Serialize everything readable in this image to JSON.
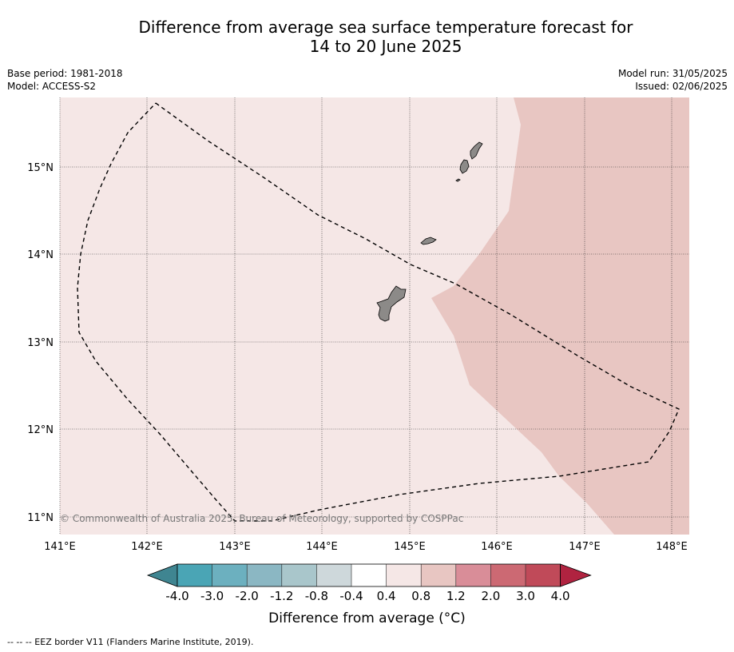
{
  "title_line1": "Difference from average sea surface temperature forecast for",
  "title_line2": "14 to 20 June 2025",
  "base_period": "Base period: 1981-2018",
  "model": "Model: ACCESS-S2",
  "model_run": "Model run: 31/05/2025",
  "issued": "Issued: 02/06/2025",
  "lat_labels": [
    "15°N",
    "14°N",
    "13°N",
    "12°N",
    "11°N"
  ],
  "lon_labels": [
    "141°E",
    "142°E",
    "143°E",
    "144°E",
    "145°E",
    "146°E",
    "147°E",
    "148°E"
  ],
  "copyright": "© Commonwealth of Australia 2025, Bureau of Meteorology, supported by COSPPac",
  "colorbar": {
    "ticks": [
      "-4.0",
      "-3.0",
      "-2.0",
      "-1.2",
      "-0.8",
      "-0.4",
      "0.4",
      "0.8",
      "1.2",
      "2.0",
      "3.0",
      "4.0"
    ],
    "colors": [
      "#3f8591",
      "#4aa5b5",
      "#6cb0bf",
      "#8bb7c3",
      "#a9c6cb",
      "#ced8db",
      "#ffffff",
      "#f5e7e6",
      "#e8c6c2",
      "#d98d98",
      "#cc6973",
      "#c04a59",
      "#b02340"
    ],
    "label": "Difference from average (°C)"
  },
  "map_colors": {
    "band_04_08": "#f5e7e6",
    "band_08_12": "#e8c6c2",
    "land": "#8c8a88"
  },
  "footer": "--  --  -- EEZ border V11 (Flanders Marine Institute, 2019)."
}
